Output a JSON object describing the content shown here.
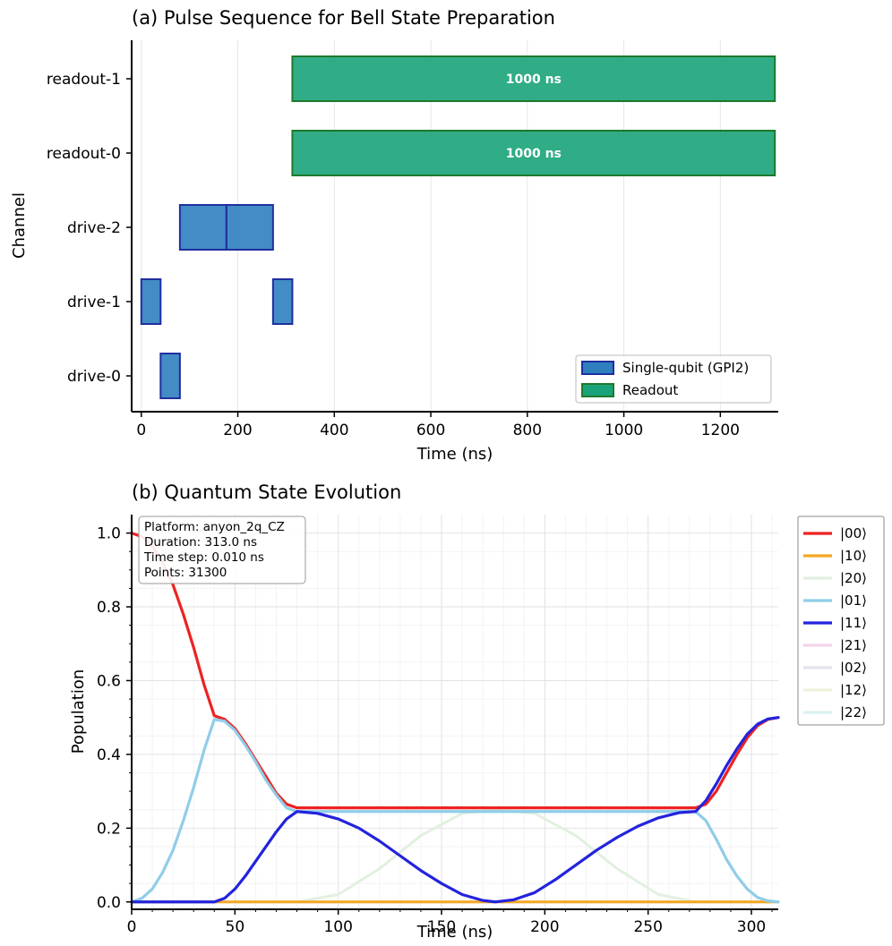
{
  "chart_data": [
    {
      "type": "gantt",
      "title": "(a) Pulse Sequence for Bell State Preparation",
      "xlabel": "Time (ns)",
      "ylabel": "Channel",
      "xlim": [
        -20,
        1320
      ],
      "xticks": [
        0,
        200,
        400,
        600,
        800,
        1000,
        1200
      ],
      "channels": [
        "drive-0",
        "drive-1",
        "drive-2",
        "readout-0",
        "readout-1"
      ],
      "pulses": [
        {
          "channel": "drive-0",
          "start": 40,
          "end": 80,
          "kind": "single"
        },
        {
          "channel": "drive-1",
          "start": 0,
          "end": 40,
          "kind": "single"
        },
        {
          "channel": "drive-1",
          "start": 273,
          "end": 313,
          "kind": "single"
        },
        {
          "channel": "drive-2",
          "start": 80,
          "end": 176.5,
          "kind": "single"
        },
        {
          "channel": "drive-2",
          "start": 176.5,
          "end": 273,
          "kind": "single"
        },
        {
          "channel": "readout-0",
          "start": 313,
          "end": 1313,
          "kind": "readout",
          "label": "1000 ns"
        },
        {
          "channel": "readout-1",
          "start": 313,
          "end": 1313,
          "kind": "readout",
          "label": "1000 ns"
        }
      ],
      "legend": [
        {
          "label": "Single-qubit (GPI2)",
          "color": "#2f7fbf",
          "edge": "#1f2f9f"
        },
        {
          "label": "Readout",
          "color": "#1aa37a",
          "edge": "#1d7a2a"
        }
      ],
      "legend_position": "lower-right",
      "grid": "x"
    },
    {
      "type": "line",
      "title": "(b) Quantum State Evolution",
      "xlabel": "Time (ns)",
      "ylabel": "Population",
      "xlim": [
        0,
        313
      ],
      "ylim": [
        -0.02,
        1.05
      ],
      "xticks": [
        0,
        50,
        100,
        150,
        200,
        250,
        300
      ],
      "yticks": [
        0.0,
        0.2,
        0.4,
        0.6,
        0.8,
        1.0
      ],
      "info_box": [
        "Platform: anyon_2q_CZ",
        "Duration: 313.0 ns",
        "Time step: 0.010 ns",
        "Points: 31300"
      ],
      "legend_position": "outside-right",
      "grid": "both",
      "series": [
        {
          "name": "|00⟩",
          "color": "#ee2222",
          "width": 3.2,
          "points": [
            [
              0,
              1.0
            ],
            [
              5,
              0.99
            ],
            [
              10,
              0.965
            ],
            [
              15,
              0.92
            ],
            [
              20,
              0.86
            ],
            [
              25,
              0.78
            ],
            [
              30,
              0.69
            ],
            [
              35,
              0.59
            ],
            [
              40,
              0.505
            ],
            [
              45,
              0.495
            ],
            [
              50,
              0.47
            ],
            [
              55,
              0.43
            ],
            [
              60,
              0.385
            ],
            [
              65,
              0.34
            ],
            [
              70,
              0.295
            ],
            [
              75,
              0.265
            ],
            [
              80,
              0.255
            ],
            [
              273,
              0.255
            ],
            [
              278,
              0.265
            ],
            [
              283,
              0.3
            ],
            [
              288,
              0.35
            ],
            [
              293,
              0.4
            ],
            [
              298,
              0.445
            ],
            [
              303,
              0.478
            ],
            [
              308,
              0.495
            ],
            [
              313,
              0.5
            ]
          ]
        },
        {
          "name": "|10⟩",
          "color": "#f5a623",
          "width": 3.0,
          "points": [
            [
              0,
              0
            ],
            [
              273,
              0
            ],
            [
              278,
              0
            ],
            [
              283,
              0
            ],
            [
              288,
              0
            ],
            [
              293,
              0
            ],
            [
              298,
              0
            ],
            [
              303,
              0
            ],
            [
              313,
              0
            ]
          ]
        },
        {
          "name": "|20⟩",
          "color": "#e2f0e0",
          "width": 3.0,
          "points": [
            [
              0,
              0
            ],
            [
              80,
              0
            ],
            [
              100,
              0.02
            ],
            [
              120,
              0.09
            ],
            [
              140,
              0.18
            ],
            [
              160,
              0.24
            ],
            [
              176,
              0.25
            ],
            [
              195,
              0.24
            ],
            [
              215,
              0.18
            ],
            [
              235,
              0.09
            ],
            [
              255,
              0.02
            ],
            [
              273,
              0
            ],
            [
              313,
              0
            ]
          ]
        },
        {
          "name": "|01⟩",
          "color": "#90cde8",
          "width": 3.2,
          "points": [
            [
              0,
              0
            ],
            [
              5,
              0.01
            ],
            [
              10,
              0.035
            ],
            [
              15,
              0.08
            ],
            [
              20,
              0.14
            ],
            [
              25,
              0.22
            ],
            [
              30,
              0.31
            ],
            [
              35,
              0.41
            ],
            [
              40,
              0.495
            ],
            [
              45,
              0.49
            ],
            [
              50,
              0.465
            ],
            [
              55,
              0.425
            ],
            [
              60,
              0.38
            ],
            [
              65,
              0.33
            ],
            [
              70,
              0.29
            ],
            [
              75,
              0.255
            ],
            [
              80,
              0.245
            ],
            [
              273,
              0.245
            ],
            [
              278,
              0.22
            ],
            [
              283,
              0.17
            ],
            [
              288,
              0.115
            ],
            [
              293,
              0.07
            ],
            [
              298,
              0.035
            ],
            [
              303,
              0.012
            ],
            [
              308,
              0.003
            ],
            [
              313,
              0
            ]
          ]
        },
        {
          "name": "|11⟩",
          "color": "#2323dd",
          "width": 3.2,
          "points": [
            [
              0,
              0
            ],
            [
              40,
              0
            ],
            [
              45,
              0.01
            ],
            [
              50,
              0.035
            ],
            [
              55,
              0.07
            ],
            [
              60,
              0.11
            ],
            [
              65,
              0.15
            ],
            [
              70,
              0.19
            ],
            [
              75,
              0.225
            ],
            [
              80,
              0.245
            ],
            [
              90,
              0.24
            ],
            [
              100,
              0.225
            ],
            [
              110,
              0.2
            ],
            [
              120,
              0.165
            ],
            [
              130,
              0.125
            ],
            [
              140,
              0.085
            ],
            [
              150,
              0.05
            ],
            [
              160,
              0.02
            ],
            [
              170,
              0.004
            ],
            [
              176,
              0
            ],
            [
              185,
              0.006
            ],
            [
              195,
              0.025
            ],
            [
              205,
              0.06
            ],
            [
              215,
              0.1
            ],
            [
              225,
              0.14
            ],
            [
              235,
              0.175
            ],
            [
              245,
              0.205
            ],
            [
              255,
              0.228
            ],
            [
              265,
              0.242
            ],
            [
              273,
              0.245
            ],
            [
              278,
              0.275
            ],
            [
              283,
              0.32
            ],
            [
              288,
              0.37
            ],
            [
              293,
              0.415
            ],
            [
              298,
              0.455
            ],
            [
              303,
              0.482
            ],
            [
              308,
              0.496
            ],
            [
              313,
              0.5
            ]
          ]
        },
        {
          "name": "|21⟩",
          "color": "#f2d5ea",
          "width": 3.0,
          "points": [
            [
              0,
              0
            ],
            [
              313,
              0
            ]
          ]
        },
        {
          "name": "|02⟩",
          "color": "#e4e2ea",
          "width": 3.0,
          "points": [
            [
              0,
              0
            ],
            [
              313,
              0
            ]
          ]
        },
        {
          "name": "|12⟩",
          "color": "#eef2dc",
          "width": 3.0,
          "points": [
            [
              0,
              0
            ],
            [
              313,
              0
            ]
          ]
        },
        {
          "name": "|22⟩",
          "color": "#d9f1f1",
          "width": 3.0,
          "points": [
            [
              0,
              0
            ],
            [
              313,
              0
            ]
          ]
        }
      ]
    }
  ]
}
